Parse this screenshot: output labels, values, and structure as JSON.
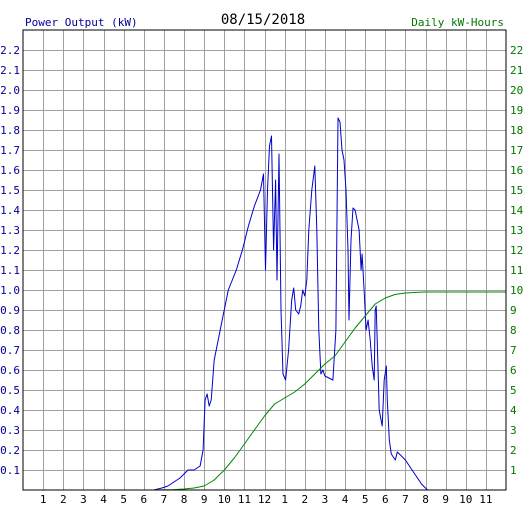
{
  "chart_data": {
    "type": "line",
    "title": "08/15/2018",
    "ylabel_left": "Power Output (kW)",
    "ylabel_right": "Daily kW-Hours",
    "xlabel": "",
    "x_unit": "hour of day (0-24)",
    "xlim": [
      0,
      24
    ],
    "ylim_left": [
      0,
      2.3
    ],
    "ylim_right": [
      0,
      23
    ],
    "grid": true,
    "x_tick_labels": [
      "1",
      "2",
      "3",
      "4",
      "5",
      "6",
      "7",
      "8",
      "9",
      "10",
      "11",
      "12",
      "1",
      "2",
      "3",
      "4",
      "5",
      "6",
      "7",
      "8",
      "9",
      "10",
      "11"
    ],
    "y_left_tick_labels": [
      "0.1",
      "0.2",
      "0.3",
      "0.4",
      "0.5",
      "0.6",
      "0.7",
      "0.8",
      "0.9",
      "1.0",
      "1.1",
      "1.2",
      "1.3",
      "1.4",
      "1.5",
      "1.6",
      "1.7",
      "1.8",
      "1.9",
      "2.0",
      "2.1",
      "2.2"
    ],
    "y_right_tick_labels": [
      "1",
      "2",
      "3",
      "4",
      "5",
      "6",
      "7",
      "8",
      "9",
      "10",
      "11",
      "12",
      "13",
      "14",
      "15",
      "16",
      "17",
      "18",
      "19",
      "20",
      "21",
      "22"
    ],
    "colors": {
      "power": "#0000cc",
      "energy": "#008800",
      "left_axis_text": "#000099",
      "right_axis_text": "#007700",
      "grid": "#a0a0a0"
    },
    "series": [
      {
        "name": "Power Output (kW)",
        "axis": "left",
        "color": "#0000cc",
        "points": [
          [
            6.5,
            0
          ],
          [
            6.9,
            0.01
          ],
          [
            7.2,
            0.02
          ],
          [
            7.5,
            0.04
          ],
          [
            7.8,
            0.06
          ],
          [
            8.0,
            0.08
          ],
          [
            8.2,
            0.1
          ],
          [
            8.5,
            0.1
          ],
          [
            8.8,
            0.12
          ],
          [
            8.95,
            0.2
          ],
          [
            9.05,
            0.45
          ],
          [
            9.15,
            0.48
          ],
          [
            9.25,
            0.42
          ],
          [
            9.35,
            0.45
          ],
          [
            9.5,
            0.65
          ],
          [
            9.7,
            0.75
          ],
          [
            9.9,
            0.85
          ],
          [
            10.2,
            1.0
          ],
          [
            10.6,
            1.1
          ],
          [
            10.9,
            1.2
          ],
          [
            11.2,
            1.32
          ],
          [
            11.5,
            1.42
          ],
          [
            11.8,
            1.5
          ],
          [
            11.95,
            1.58
          ],
          [
            12.05,
            1.1
          ],
          [
            12.15,
            1.5
          ],
          [
            12.25,
            1.72
          ],
          [
            12.35,
            1.77
          ],
          [
            12.45,
            1.2
          ],
          [
            12.55,
            1.55
          ],
          [
            12.62,
            1.05
          ],
          [
            12.72,
            1.68
          ],
          [
            12.82,
            0.9
          ],
          [
            12.92,
            0.58
          ],
          [
            13.05,
            0.55
          ],
          [
            13.2,
            0.7
          ],
          [
            13.35,
            0.95
          ],
          [
            13.45,
            1.01
          ],
          [
            13.55,
            0.9
          ],
          [
            13.7,
            0.88
          ],
          [
            13.8,
            0.92
          ],
          [
            13.9,
            1.0
          ],
          [
            14.0,
            0.97
          ],
          [
            14.1,
            1.05
          ],
          [
            14.2,
            1.3
          ],
          [
            14.35,
            1.5
          ],
          [
            14.5,
            1.62
          ],
          [
            14.6,
            1.3
          ],
          [
            14.7,
            0.8
          ],
          [
            14.8,
            0.58
          ],
          [
            14.9,
            0.6
          ],
          [
            15.0,
            0.57
          ],
          [
            15.2,
            0.56
          ],
          [
            15.4,
            0.55
          ],
          [
            15.55,
            0.8
          ],
          [
            15.65,
            1.86
          ],
          [
            15.75,
            1.84
          ],
          [
            15.85,
            1.7
          ],
          [
            15.95,
            1.65
          ],
          [
            16.05,
            1.5
          ],
          [
            16.15,
            1.2
          ],
          [
            16.2,
            0.85
          ],
          [
            16.3,
            1.25
          ],
          [
            16.4,
            1.41
          ],
          [
            16.5,
            1.4
          ],
          [
            16.6,
            1.35
          ],
          [
            16.7,
            1.3
          ],
          [
            16.8,
            1.1
          ],
          [
            16.85,
            1.18
          ],
          [
            16.95,
            1.0
          ],
          [
            17.05,
            0.8
          ],
          [
            17.15,
            0.85
          ],
          [
            17.25,
            0.75
          ],
          [
            17.35,
            0.62
          ],
          [
            17.45,
            0.55
          ],
          [
            17.5,
            0.9
          ],
          [
            17.55,
            0.92
          ],
          [
            17.6,
            0.75
          ],
          [
            17.7,
            0.4
          ],
          [
            17.85,
            0.32
          ],
          [
            17.95,
            0.55
          ],
          [
            18.05,
            0.62
          ],
          [
            18.1,
            0.45
          ],
          [
            18.2,
            0.25
          ],
          [
            18.3,
            0.18
          ],
          [
            18.5,
            0.15
          ],
          [
            18.6,
            0.19
          ],
          [
            18.8,
            0.17
          ],
          [
            19.0,
            0.15
          ],
          [
            19.2,
            0.12
          ],
          [
            19.4,
            0.09
          ],
          [
            19.6,
            0.06
          ],
          [
            19.8,
            0.03
          ],
          [
            20.0,
            0.01
          ],
          [
            20.1,
            0
          ]
        ]
      },
      {
        "name": "Daily kW-Hours",
        "axis": "right",
        "color": "#008800",
        "points": [
          [
            6.5,
            0
          ],
          [
            7.5,
            0.02
          ],
          [
            8.0,
            0.05
          ],
          [
            8.5,
            0.1
          ],
          [
            9.0,
            0.2
          ],
          [
            9.5,
            0.5
          ],
          [
            10.0,
            1.0
          ],
          [
            10.5,
            1.6
          ],
          [
            11.0,
            2.3
          ],
          [
            11.5,
            3.0
          ],
          [
            12.0,
            3.7
          ],
          [
            12.5,
            4.3
          ],
          [
            13.0,
            4.6
          ],
          [
            13.5,
            4.9
          ],
          [
            14.0,
            5.3
          ],
          [
            14.5,
            5.8
          ],
          [
            15.0,
            6.3
          ],
          [
            15.5,
            6.7
          ],
          [
            16.0,
            7.4
          ],
          [
            16.5,
            8.1
          ],
          [
            17.0,
            8.7
          ],
          [
            17.5,
            9.3
          ],
          [
            18.0,
            9.6
          ],
          [
            18.5,
            9.78
          ],
          [
            19.0,
            9.85
          ],
          [
            19.5,
            9.88
          ],
          [
            20.0,
            9.9
          ],
          [
            20.5,
            9.9
          ],
          [
            24.0,
            9.9
          ]
        ]
      }
    ]
  }
}
